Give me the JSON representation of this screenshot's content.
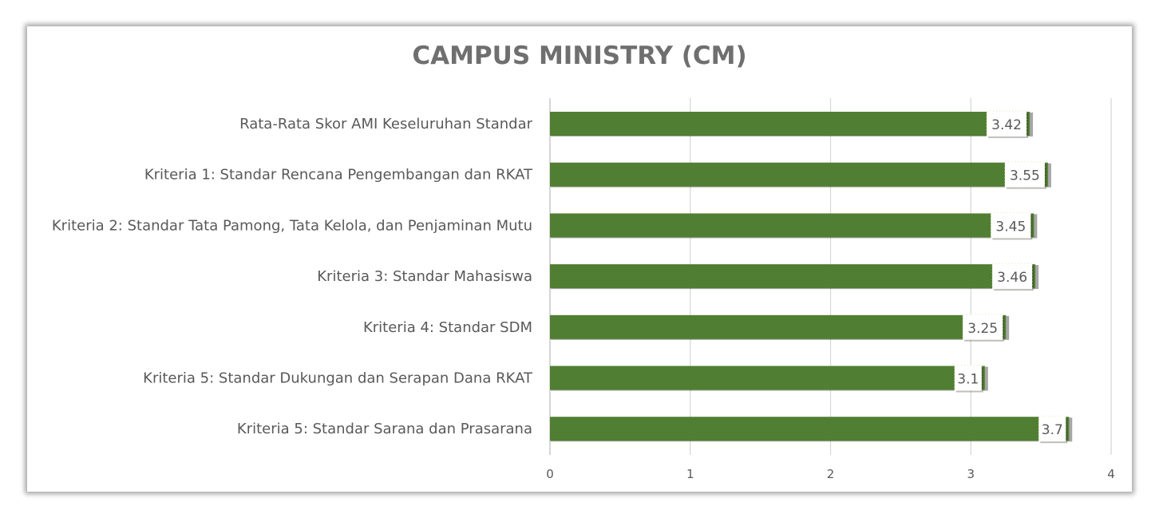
{
  "chart_data": {
    "type": "bar",
    "orientation": "horizontal",
    "title": "CAMPUS MINISTRY (CM)",
    "categories": [
      "Rata-Rata Skor AMI Keseluruhan Standar",
      "Kriteria 1: Standar Rencana Pengembangan dan RKAT",
      "Kriteria 2: Standar Tata Pamong, Tata Kelola, dan Penjaminan Mutu",
      "Kriteria 3: Standar Mahasiswa",
      "Kriteria 4: Standar SDM",
      "Kriteria 5: Standar Dukungan dan Serapan Dana RKAT",
      "Kriteria 5: Standar Sarana dan Prasarana"
    ],
    "values": [
      3.42,
      3.55,
      3.45,
      3.46,
      3.25,
      3.1,
      3.7
    ],
    "data_labels": [
      "3.42",
      "3.55",
      "3.45",
      "3.46",
      "3.25",
      "3.1",
      "3.7"
    ],
    "xlim": [
      0,
      4
    ],
    "x_ticks": [
      "0",
      "1",
      "2",
      "3",
      "4"
    ],
    "grid": "vertical",
    "legend": "none",
    "bar_color": "#507e32",
    "grid_color": "#d9d9d9"
  }
}
